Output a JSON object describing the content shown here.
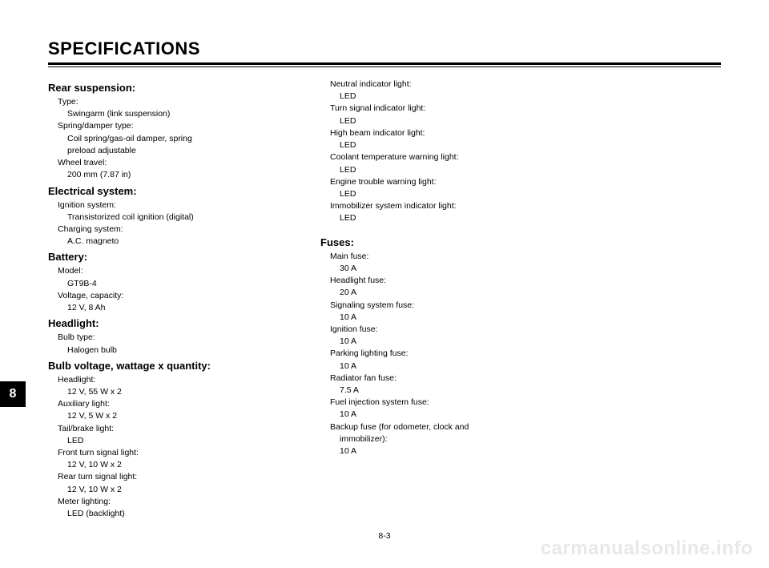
{
  "page": {
    "title": "SPECIFICATIONS",
    "tab": "8",
    "number": "8-3",
    "watermark": "carmanualsonline.info"
  },
  "col1": {
    "rear_suspension": {
      "heading": "Rear suspension:",
      "type_label": "Type:",
      "type_value": "Swingarm (link suspension)",
      "spring_label": "Spring/damper type:",
      "spring_value1": "Coil spring/gas-oil damper, spring",
      "spring_value2": "preload adjustable",
      "travel_label": "Wheel travel:",
      "travel_value": "200 mm (7.87 in)"
    },
    "electrical": {
      "heading": "Electrical system:",
      "ignition_label": "Ignition system:",
      "ignition_value": "Transistorized coil ignition (digital)",
      "charging_label": "Charging system:",
      "charging_value": "A.C. magneto"
    },
    "battery": {
      "heading": "Battery:",
      "model_label": "Model:",
      "model_value": "GT9B-4",
      "voltage_label": "Voltage, capacity:",
      "voltage_value": "12 V, 8 Ah"
    },
    "headlight": {
      "heading": "Headlight:",
      "bulb_label": "Bulb type:",
      "bulb_value": "Halogen bulb"
    },
    "bulb": {
      "heading": "Bulb voltage, wattage x quantity:",
      "hl_label": "Headlight:",
      "hl_value": "12 V, 55 W x 2",
      "aux_label": "Auxiliary light:",
      "aux_value": "12 V, 5 W x 2",
      "tail_label": "Tail/brake light:",
      "tail_value": "LED",
      "fts_label": "Front turn signal light:",
      "fts_value": "12 V, 10 W x 2",
      "rts_label": "Rear turn signal light:",
      "rts_value": "12 V, 10 W x 2",
      "meter_label": "Meter lighting:",
      "meter_value": "LED (backlight)"
    }
  },
  "col2": {
    "lights": {
      "neutral_label": "Neutral indicator light:",
      "neutral_value": "LED",
      "turn_label": "Turn signal indicator light:",
      "turn_value": "LED",
      "high_label": "High beam indicator light:",
      "high_value": "LED",
      "coolant_label": "Coolant temperature warning light:",
      "coolant_value": "LED",
      "engine_label": "Engine trouble warning light:",
      "engine_value": "LED",
      "immob_label": "Immobilizer system indicator light:",
      "immob_value": "LED"
    },
    "fuses": {
      "heading": "Fuses:",
      "main_label": "Main fuse:",
      "main_value": "30 A",
      "hl_label": "Headlight fuse:",
      "hl_value": "20 A",
      "sig_label": "Signaling system fuse:",
      "sig_value": "10 A",
      "ign_label": "Ignition fuse:",
      "ign_value": "10 A",
      "park_label": "Parking lighting fuse:",
      "park_value": "10 A",
      "rad_label": "Radiator fan fuse:",
      "rad_value": "7.5 A",
      "inj_label": "Fuel injection system fuse:",
      "inj_value": "10 A",
      "backup_label1": "Backup fuse (for odometer, clock and",
      "backup_label2": "immobilizer):",
      "backup_value": "10 A"
    }
  }
}
